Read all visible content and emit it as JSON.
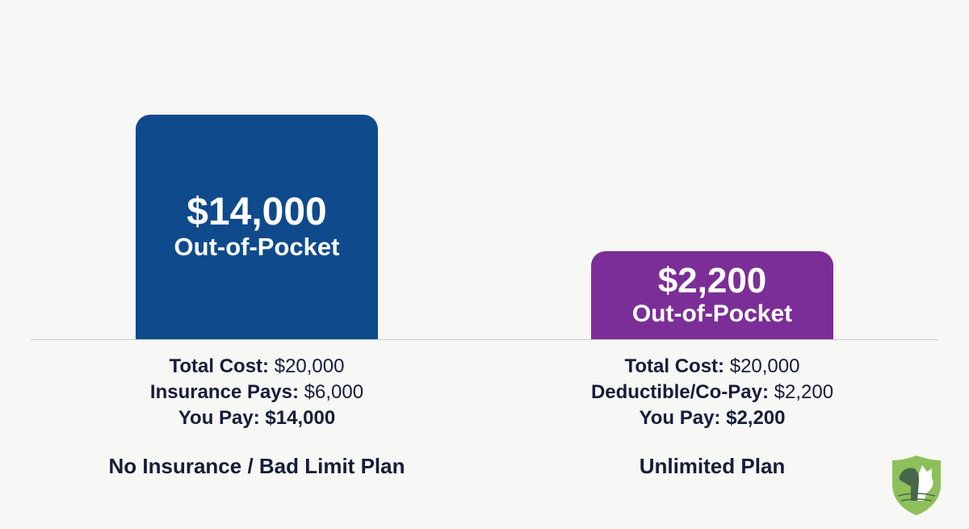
{
  "chart_data": {
    "type": "bar",
    "categories": [
      "No Insurance / Bad Limit Plan",
      "Unlimited Plan"
    ],
    "values": [
      14000,
      2200
    ],
    "bar_labels": [
      {
        "value": "$14,000",
        "sub": "Out-of-Pocket"
      },
      {
        "value": "$2,200",
        "sub": "Out-of-Pocket"
      }
    ],
    "colors": [
      "#0f4a8c",
      "#7b2e97"
    ],
    "details": [
      [
        {
          "label": "Total Cost:",
          "value": "$20,000",
          "bold_value": false
        },
        {
          "label": "Insurance Pays:",
          "value": "$6,000",
          "bold_value": false
        },
        {
          "label": "You Pay:",
          "value": "$14,000",
          "bold_value": true
        }
      ],
      [
        {
          "label": "Total Cost:",
          "value": "$20,000",
          "bold_value": false
        },
        {
          "label": "Deductible/Co-Pay:",
          "value": "$2,200",
          "bold_value": false
        },
        {
          "label": "You Pay:",
          "value": "$2,200",
          "bold_value": true
        }
      ]
    ],
    "grid": false,
    "legend": "none"
  },
  "logo": {
    "icon": "shield-dog-cat-icon",
    "color": "#8dbf5a"
  }
}
